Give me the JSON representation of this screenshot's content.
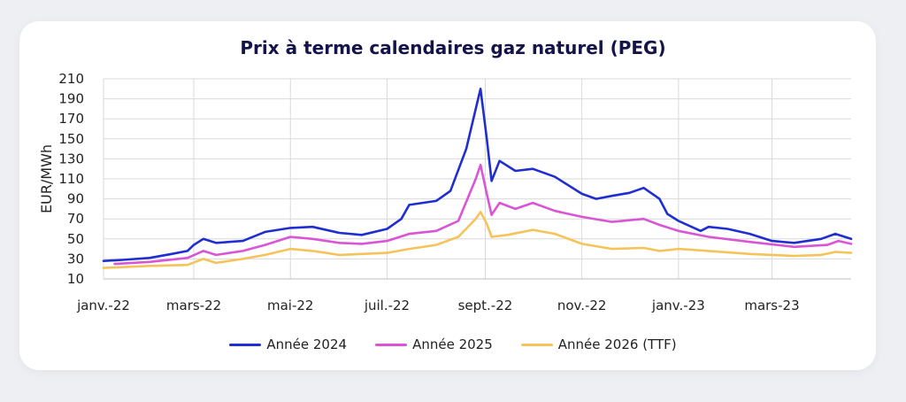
{
  "chart_data": {
    "type": "line",
    "title": "Prix à terme calendaires gaz naturel (PEG)",
    "ylabel": "EUR/MWh",
    "xlabel": "",
    "ylim": [
      10,
      210
    ],
    "yticks": [
      10,
      30,
      50,
      70,
      90,
      110,
      130,
      150,
      170,
      190,
      210
    ],
    "xlim": [
      "2022-01-03",
      "2023-04-20"
    ],
    "xticks": [
      {
        "date": "2022-01-01",
        "label": "janv.-22"
      },
      {
        "date": "2022-03-01",
        "label": "mars-22"
      },
      {
        "date": "2022-05-01",
        "label": "mai-22"
      },
      {
        "date": "2022-07-01",
        "label": "juil.-22"
      },
      {
        "date": "2022-09-01",
        "label": "sept.-22"
      },
      {
        "date": "2022-11-01",
        "label": "nov.-22"
      },
      {
        "date": "2023-01-01",
        "label": "janv.-23"
      },
      {
        "date": "2023-03-01",
        "label": "mars-23"
      }
    ],
    "grid": true,
    "legend_position": "bottom",
    "series": [
      {
        "name": "Année 2024",
        "color": "#1f2ed1",
        "points": [
          [
            "2022-01-03",
            28
          ],
          [
            "2022-01-15",
            29
          ],
          [
            "2022-02-01",
            31
          ],
          [
            "2022-02-15",
            35
          ],
          [
            "2022-02-25",
            38
          ],
          [
            "2022-03-01",
            44
          ],
          [
            "2022-03-07",
            50
          ],
          [
            "2022-03-15",
            46
          ],
          [
            "2022-04-01",
            48
          ],
          [
            "2022-04-15",
            57
          ],
          [
            "2022-05-01",
            61
          ],
          [
            "2022-05-15",
            62
          ],
          [
            "2022-06-01",
            56
          ],
          [
            "2022-06-15",
            54
          ],
          [
            "2022-07-01",
            60
          ],
          [
            "2022-07-10",
            70
          ],
          [
            "2022-07-15",
            84
          ],
          [
            "2022-08-01",
            88
          ],
          [
            "2022-08-10",
            98
          ],
          [
            "2022-08-20",
            140
          ],
          [
            "2022-08-26",
            180
          ],
          [
            "2022-08-29",
            200
          ],
          [
            "2022-09-02",
            150
          ],
          [
            "2022-09-05",
            108
          ],
          [
            "2022-09-10",
            128
          ],
          [
            "2022-09-20",
            118
          ],
          [
            "2022-10-01",
            120
          ],
          [
            "2022-10-15",
            112
          ],
          [
            "2022-11-01",
            95
          ],
          [
            "2022-11-10",
            90
          ],
          [
            "2022-11-20",
            93
          ],
          [
            "2022-12-01",
            96
          ],
          [
            "2022-12-10",
            101
          ],
          [
            "2022-12-20",
            90
          ],
          [
            "2022-12-25",
            75
          ],
          [
            "2023-01-01",
            68
          ],
          [
            "2023-01-15",
            58
          ],
          [
            "2023-01-20",
            62
          ],
          [
            "2023-02-01",
            60
          ],
          [
            "2023-02-15",
            55
          ],
          [
            "2023-03-01",
            48
          ],
          [
            "2023-03-15",
            46
          ],
          [
            "2023-04-01",
            50
          ],
          [
            "2023-04-10",
            55
          ],
          [
            "2023-04-20",
            50
          ]
        ]
      },
      {
        "name": "Année 2025",
        "color": "#d955d6",
        "points": [
          [
            "2022-01-10",
            25
          ],
          [
            "2022-02-01",
            27
          ],
          [
            "2022-02-25",
            31
          ],
          [
            "2022-03-07",
            38
          ],
          [
            "2022-03-15",
            34
          ],
          [
            "2022-04-01",
            38
          ],
          [
            "2022-04-15",
            44
          ],
          [
            "2022-05-01",
            52
          ],
          [
            "2022-05-15",
            50
          ],
          [
            "2022-06-01",
            46
          ],
          [
            "2022-06-15",
            45
          ],
          [
            "2022-07-01",
            48
          ],
          [
            "2022-07-15",
            55
          ],
          [
            "2022-08-01",
            58
          ],
          [
            "2022-08-15",
            68
          ],
          [
            "2022-08-26",
            110
          ],
          [
            "2022-08-29",
            124
          ],
          [
            "2022-09-02",
            95
          ],
          [
            "2022-09-05",
            74
          ],
          [
            "2022-09-10",
            86
          ],
          [
            "2022-09-20",
            80
          ],
          [
            "2022-10-01",
            86
          ],
          [
            "2022-10-15",
            78
          ],
          [
            "2022-11-01",
            72
          ],
          [
            "2022-11-20",
            67
          ],
          [
            "2022-12-10",
            70
          ],
          [
            "2022-12-20",
            64
          ],
          [
            "2023-01-01",
            58
          ],
          [
            "2023-01-20",
            52
          ],
          [
            "2023-02-15",
            47
          ],
          [
            "2023-03-15",
            42
          ],
          [
            "2023-04-05",
            44
          ],
          [
            "2023-04-12",
            48
          ],
          [
            "2023-04-20",
            45
          ]
        ]
      },
      {
        "name": "Année 2026 (TTF)",
        "color": "#f6c35a",
        "points": [
          [
            "2022-01-03",
            21
          ],
          [
            "2022-02-01",
            23
          ],
          [
            "2022-02-25",
            24
          ],
          [
            "2022-03-07",
            30
          ],
          [
            "2022-03-15",
            26
          ],
          [
            "2022-04-01",
            30
          ],
          [
            "2022-04-15",
            34
          ],
          [
            "2022-05-01",
            40
          ],
          [
            "2022-05-15",
            38
          ],
          [
            "2022-06-01",
            34
          ],
          [
            "2022-07-01",
            36
          ],
          [
            "2022-07-15",
            40
          ],
          [
            "2022-08-01",
            44
          ],
          [
            "2022-08-15",
            52
          ],
          [
            "2022-08-26",
            70
          ],
          [
            "2022-08-29",
            77
          ],
          [
            "2022-09-02",
            65
          ],
          [
            "2022-09-05",
            52
          ],
          [
            "2022-09-15",
            54
          ],
          [
            "2022-10-01",
            59
          ],
          [
            "2022-10-15",
            55
          ],
          [
            "2022-11-01",
            45
          ],
          [
            "2022-11-20",
            40
          ],
          [
            "2022-12-10",
            41
          ],
          [
            "2022-12-20",
            38
          ],
          [
            "2023-01-01",
            40
          ],
          [
            "2023-01-20",
            38
          ],
          [
            "2023-02-15",
            35
          ],
          [
            "2023-03-15",
            33
          ],
          [
            "2023-04-01",
            34
          ],
          [
            "2023-04-10",
            37
          ],
          [
            "2023-04-20",
            36
          ]
        ]
      }
    ]
  }
}
